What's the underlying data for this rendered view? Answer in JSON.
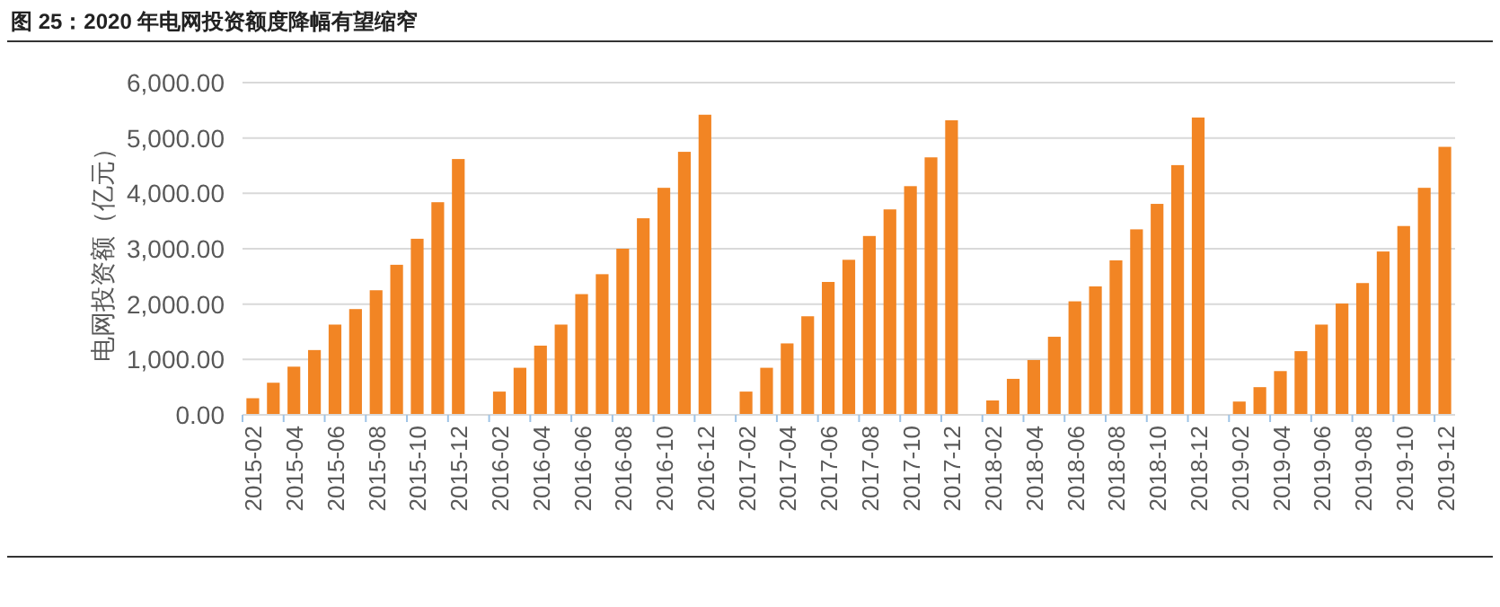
{
  "chart_data": {
    "type": "bar",
    "title": "图 25：2020 年电网投资额度降幅有望缩窄",
    "ylabel": "电网投资额（亿元）",
    "categories": [
      "2015-02",
      null,
      "2015-04",
      null,
      "2015-06",
      null,
      "2015-08",
      null,
      "2015-10",
      null,
      "2015-12",
      null,
      "2016-02",
      null,
      "2016-04",
      null,
      "2016-06",
      null,
      "2016-08",
      null,
      "2016-10",
      null,
      "2016-12",
      null,
      "2017-02",
      null,
      "2017-04",
      null,
      "2017-06",
      null,
      "2017-08",
      null,
      "2017-10",
      null,
      "2017-12",
      null,
      "2018-02",
      null,
      "2018-04",
      null,
      "2018-06",
      null,
      "2018-08",
      null,
      "2018-10",
      null,
      "2018-12",
      null,
      "2019-02",
      null,
      "2019-04",
      null,
      "2019-06",
      null,
      "2019-08",
      null,
      "2019-10",
      null,
      "2019-12"
    ],
    "values": [
      300,
      580,
      870,
      1170,
      1630,
      1910,
      2250,
      2710,
      3180,
      3840,
      4620,
      null,
      420,
      850,
      1250,
      1630,
      2180,
      2540,
      3000,
      3550,
      4100,
      4750,
      5420,
      null,
      420,
      850,
      1290,
      1780,
      2400,
      2800,
      3230,
      3710,
      4130,
      4650,
      5320,
      null,
      260,
      650,
      990,
      1410,
      2050,
      2320,
      2790,
      3350,
      3810,
      4510,
      5370,
      null,
      240,
      500,
      790,
      1150,
      1630,
      2010,
      2380,
      2950,
      3410,
      4100,
      4840
    ],
    "color": "#f28524",
    "ylim": [
      0,
      6000
    ],
    "yticks": [
      {
        "value": 0,
        "label": "0.00"
      },
      {
        "value": 1000,
        "label": "1,000.00"
      },
      {
        "value": 2000,
        "label": "2,000.00"
      },
      {
        "value": 3000,
        "label": "3,000.00"
      },
      {
        "value": 4000,
        "label": "4,000.00"
      },
      {
        "value": 5000,
        "label": "5,000.00"
      },
      {
        "value": 6000,
        "label": "6,000.00"
      }
    ],
    "grid": "y"
  }
}
